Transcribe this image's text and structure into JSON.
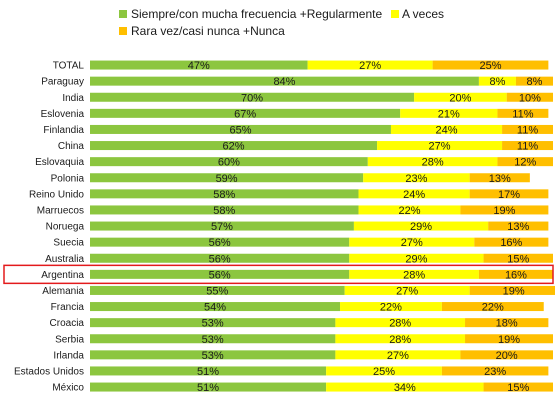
{
  "colors": {
    "series_1": "#8cc63f",
    "series_2": "#ffff00",
    "series_3": "#ffbf00",
    "highlight_box": "#e31a1c"
  },
  "chart_data": {
    "type": "bar",
    "orientation": "horizontal",
    "stacked": true,
    "percent_stacked": true,
    "legend_position": "top",
    "grid": false,
    "xlim": [
      0,
      100
    ],
    "highlight_category": "Argentina",
    "categories": [
      "TOTAL",
      "Paraguay",
      "India",
      "Eslovenia",
      "Finlandia",
      "China",
      "Eslovaquia",
      "Polonia",
      "Reino Unido",
      "Marruecos",
      "Noruega",
      "Suecia",
      "Australia",
      "Argentina",
      "Alemania",
      "Francia",
      "Croacia",
      "Serbia",
      "Irlanda",
      "Estados Unidos",
      "México"
    ],
    "series": [
      {
        "name": "Siempre/con mucha frecuencia +Regularmente",
        "values": [
          47,
          84,
          70,
          67,
          65,
          62,
          60,
          59,
          58,
          58,
          57,
          56,
          56,
          56,
          55,
          54,
          53,
          53,
          53,
          51,
          51
        ],
        "labels": [
          "47%",
          "84%",
          "70%",
          "67%",
          "65%",
          "62%",
          "60%",
          "59%",
          "58%",
          "58%",
          "57%",
          "56%",
          "56%",
          "56%",
          "55%",
          "54%",
          "53%",
          "53%",
          "53%",
          "51%",
          "51%"
        ]
      },
      {
        "name": "A veces",
        "values": [
          27,
          8,
          20,
          21,
          24,
          27,
          28,
          23,
          24,
          22,
          29,
          27,
          29,
          28,
          27,
          22,
          28,
          28,
          27,
          25,
          34
        ],
        "labels": [
          "27%",
          "8%",
          "20%",
          "21%",
          "24%",
          "27%",
          "28%",
          "23%",
          "24%",
          "22%",
          "29%",
          "27%",
          "29%",
          "28%",
          "27%",
          "22%",
          "28%",
          "28%",
          "27%",
          "25%",
          "34%"
        ]
      },
      {
        "name": "Rara vez/casi nunca +Nunca",
        "values": [
          25,
          8,
          10,
          11,
          11,
          11,
          12,
          13,
          17,
          19,
          13,
          16,
          15,
          16,
          19,
          22,
          18,
          19,
          20,
          23,
          15
        ],
        "labels": [
          "25%",
          "8%",
          "10%",
          "11%",
          "11%",
          "11%",
          "12%",
          "13%",
          "17%",
          "19%",
          "13%",
          "16%",
          "15%",
          "16%",
          "19%",
          "22%",
          "18%",
          "19%",
          "20%",
          "23%",
          "15%"
        ]
      }
    ]
  }
}
